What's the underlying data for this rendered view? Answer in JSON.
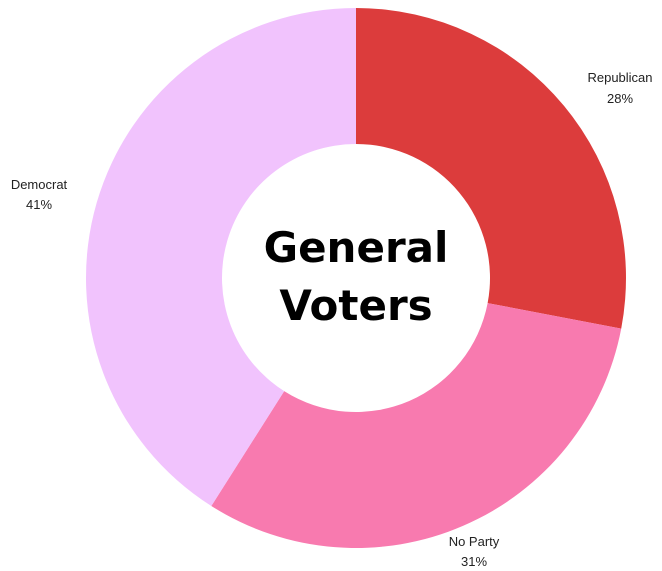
{
  "chart_data": {
    "type": "pie",
    "variant": "donut",
    "title_lines": [
      "General",
      "Voters"
    ],
    "slices": [
      {
        "label": "Republican",
        "value": 28,
        "value_label": "28%",
        "color": "#dc3c3c"
      },
      {
        "label": "No Party",
        "value": 31,
        "value_label": "31%",
        "color": "#f87aaf"
      },
      {
        "label": "Democrat",
        "value": 41,
        "value_label": "41%",
        "color": "#f1c3fd"
      }
    ]
  }
}
